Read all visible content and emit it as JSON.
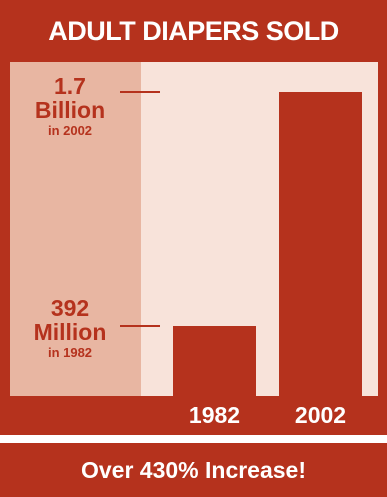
{
  "header": {
    "title": "ADULT DIAPERS SOLD"
  },
  "footer": {
    "text": "Over 430% Increase!"
  },
  "chart_data": {
    "type": "bar",
    "title": "ADULT DIAPERS SOLD",
    "categories": [
      "1982",
      "2002"
    ],
    "values": [
      392000000,
      1700000000
    ],
    "ylim": [
      0,
      1870000000
    ],
    "annotations": [
      {
        "value_line_1": "392",
        "value_line_2": "Million",
        "year_text": "in 1982",
        "y": 392000000
      },
      {
        "value_line_1": "1.7",
        "value_line_2": "Billion",
        "year_text": "in 2002",
        "y": 1700000000
      }
    ],
    "colors": {
      "bar": "#b5321d",
      "background": "#f8e3da",
      "label_panel": "#e8b6a2"
    }
  }
}
